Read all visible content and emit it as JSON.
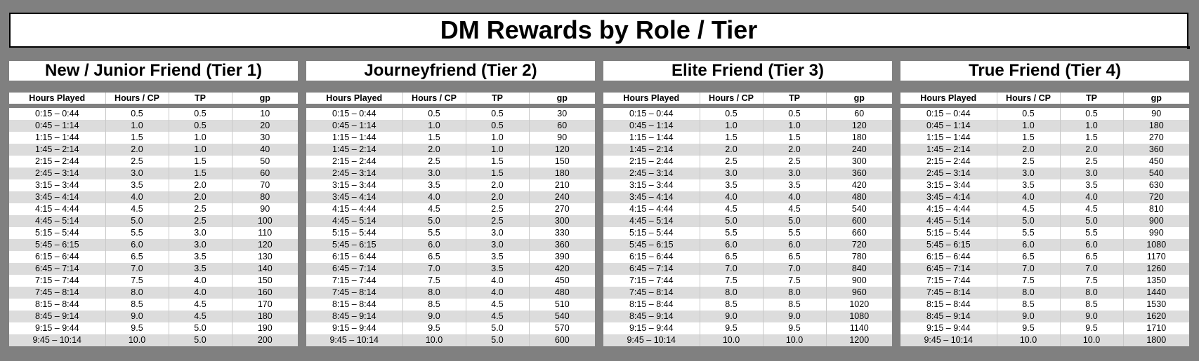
{
  "title": "DM Rewards by Role / Tier",
  "columns": [
    "Hours Played",
    "Hours / CP",
    "TP",
    "gp"
  ],
  "tiers": [
    {
      "name": "New / Junior Friend (Tier 1)",
      "rows": [
        [
          "0:15 – 0:44",
          "0.5",
          "0.5",
          "10"
        ],
        [
          "0:45 – 1:14",
          "1.0",
          "0.5",
          "20"
        ],
        [
          "1:15 – 1:44",
          "1.5",
          "1.0",
          "30"
        ],
        [
          "1:45 – 2:14",
          "2.0",
          "1.0",
          "40"
        ],
        [
          "2:15 – 2:44",
          "2.5",
          "1.5",
          "50"
        ],
        [
          "2:45 – 3:14",
          "3.0",
          "1.5",
          "60"
        ],
        [
          "3:15 – 3:44",
          "3.5",
          "2.0",
          "70"
        ],
        [
          "3:45 – 4:14",
          "4.0",
          "2.0",
          "80"
        ],
        [
          "4:15 – 4:44",
          "4.5",
          "2.5",
          "90"
        ],
        [
          "4:45 – 5:14",
          "5.0",
          "2.5",
          "100"
        ],
        [
          "5:15 – 5:44",
          "5.5",
          "3.0",
          "110"
        ],
        [
          "5:45 – 6:15",
          "6.0",
          "3.0",
          "120"
        ],
        [
          "6:15 – 6:44",
          "6.5",
          "3.5",
          "130"
        ],
        [
          "6:45 – 7:14",
          "7.0",
          "3.5",
          "140"
        ],
        [
          "7:15 – 7:44",
          "7.5",
          "4.0",
          "150"
        ],
        [
          "7:45 – 8:14",
          "8.0",
          "4.0",
          "160"
        ],
        [
          "8:15 – 8:44",
          "8.5",
          "4.5",
          "170"
        ],
        [
          "8:45 – 9:14",
          "9.0",
          "4.5",
          "180"
        ],
        [
          "9:15 – 9:44",
          "9.5",
          "5.0",
          "190"
        ],
        [
          "9:45 – 10:14",
          "10.0",
          "5.0",
          "200"
        ]
      ]
    },
    {
      "name": "Journeyfriend (Tier 2)",
      "rows": [
        [
          "0:15 – 0:44",
          "0.5",
          "0.5",
          "30"
        ],
        [
          "0:45 – 1:14",
          "1.0",
          "0.5",
          "60"
        ],
        [
          "1:15 – 1:44",
          "1.5",
          "1.0",
          "90"
        ],
        [
          "1:45 – 2:14",
          "2.0",
          "1.0",
          "120"
        ],
        [
          "2:15 – 2:44",
          "2.5",
          "1.5",
          "150"
        ],
        [
          "2:45 – 3:14",
          "3.0",
          "1.5",
          "180"
        ],
        [
          "3:15 – 3:44",
          "3.5",
          "2.0",
          "210"
        ],
        [
          "3:45 – 4:14",
          "4.0",
          "2.0",
          "240"
        ],
        [
          "4:15 – 4:44",
          "4.5",
          "2.5",
          "270"
        ],
        [
          "4:45 – 5:14",
          "5.0",
          "2.5",
          "300"
        ],
        [
          "5:15 – 5:44",
          "5.5",
          "3.0",
          "330"
        ],
        [
          "5:45 – 6:15",
          "6.0",
          "3.0",
          "360"
        ],
        [
          "6:15 – 6:44",
          "6.5",
          "3.5",
          "390"
        ],
        [
          "6:45 – 7:14",
          "7.0",
          "3.5",
          "420"
        ],
        [
          "7:15 – 7:44",
          "7.5",
          "4.0",
          "450"
        ],
        [
          "7:45 – 8:14",
          "8.0",
          "4.0",
          "480"
        ],
        [
          "8:15 – 8:44",
          "8.5",
          "4.5",
          "510"
        ],
        [
          "8:45 – 9:14",
          "9.0",
          "4.5",
          "540"
        ],
        [
          "9:15 – 9:44",
          "9.5",
          "5.0",
          "570"
        ],
        [
          "9:45 – 10:14",
          "10.0",
          "5.0",
          "600"
        ]
      ]
    },
    {
      "name": "Elite Friend (Tier 3)",
      "rows": [
        [
          "0:15 – 0:44",
          "0.5",
          "0.5",
          "60"
        ],
        [
          "0:45 – 1:14",
          "1.0",
          "1.0",
          "120"
        ],
        [
          "1:15 – 1:44",
          "1.5",
          "1.5",
          "180"
        ],
        [
          "1:45 – 2:14",
          "2.0",
          "2.0",
          "240"
        ],
        [
          "2:15 – 2:44",
          "2.5",
          "2.5",
          "300"
        ],
        [
          "2:45 – 3:14",
          "3.0",
          "3.0",
          "360"
        ],
        [
          "3:15 – 3:44",
          "3.5",
          "3.5",
          "420"
        ],
        [
          "3:45 – 4:14",
          "4.0",
          "4.0",
          "480"
        ],
        [
          "4:15 – 4:44",
          "4.5",
          "4.5",
          "540"
        ],
        [
          "4:45 – 5:14",
          "5.0",
          "5.0",
          "600"
        ],
        [
          "5:15 – 5:44",
          "5.5",
          "5.5",
          "660"
        ],
        [
          "5:45 – 6:15",
          "6.0",
          "6.0",
          "720"
        ],
        [
          "6:15 – 6:44",
          "6.5",
          "6.5",
          "780"
        ],
        [
          "6:45 – 7:14",
          "7.0",
          "7.0",
          "840"
        ],
        [
          "7:15 – 7:44",
          "7.5",
          "7.5",
          "900"
        ],
        [
          "7:45 – 8:14",
          "8.0",
          "8.0",
          "960"
        ],
        [
          "8:15 – 8:44",
          "8.5",
          "8.5",
          "1020"
        ],
        [
          "8:45 – 9:14",
          "9.0",
          "9.0",
          "1080"
        ],
        [
          "9:15 – 9:44",
          "9.5",
          "9.5",
          "1140"
        ],
        [
          "9:45 – 10:14",
          "10.0",
          "10.0",
          "1200"
        ]
      ]
    },
    {
      "name": "True Friend (Tier 4)",
      "rows": [
        [
          "0:15 – 0:44",
          "0.5",
          "0.5",
          "90"
        ],
        [
          "0:45 – 1:14",
          "1.0",
          "1.0",
          "180"
        ],
        [
          "1:15 – 1:44",
          "1.5",
          "1.5",
          "270"
        ],
        [
          "1:45 – 2:14",
          "2.0",
          "2.0",
          "360"
        ],
        [
          "2:15 – 2:44",
          "2.5",
          "2.5",
          "450"
        ],
        [
          "2:45 – 3:14",
          "3.0",
          "3.0",
          "540"
        ],
        [
          "3:15 – 3:44",
          "3.5",
          "3.5",
          "630"
        ],
        [
          "3:45 – 4:14",
          "4.0",
          "4.0",
          "720"
        ],
        [
          "4:15 – 4:44",
          "4.5",
          "4.5",
          "810"
        ],
        [
          "4:45 – 5:14",
          "5.0",
          "5.0",
          "900"
        ],
        [
          "5:15 – 5:44",
          "5.5",
          "5.5",
          "990"
        ],
        [
          "5:45 – 6:15",
          "6.0",
          "6.0",
          "1080"
        ],
        [
          "6:15 – 6:44",
          "6.5",
          "6.5",
          "1170"
        ],
        [
          "6:45 – 7:14",
          "7.0",
          "7.0",
          "1260"
        ],
        [
          "7:15 – 7:44",
          "7.5",
          "7.5",
          "1350"
        ],
        [
          "7:45 – 8:14",
          "8.0",
          "8.0",
          "1440"
        ],
        [
          "8:15 – 8:44",
          "8.5",
          "8.5",
          "1530"
        ],
        [
          "8:45 – 9:14",
          "9.0",
          "9.0",
          "1620"
        ],
        [
          "9:15 – 9:44",
          "9.5",
          "9.5",
          "1710"
        ],
        [
          "9:45 – 10:14",
          "10.0",
          "10.0",
          "1800"
        ]
      ]
    }
  ]
}
